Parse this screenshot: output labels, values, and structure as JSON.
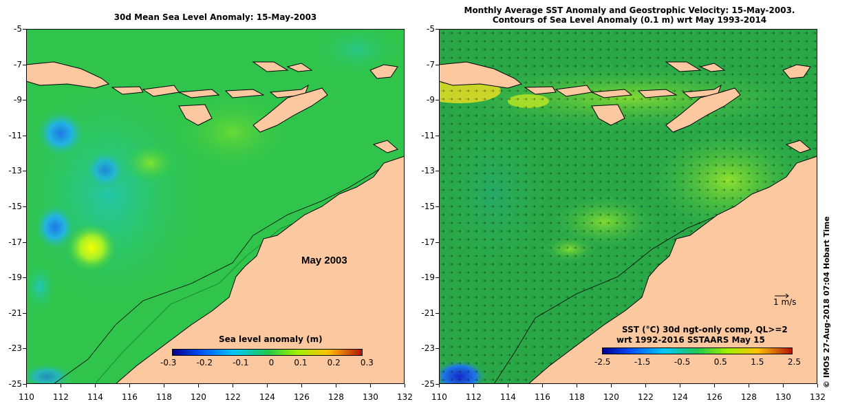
{
  "left_panel": {
    "title": "30d Mean Sea Level Anomaly: 15-May-2003",
    "month_label": "May 2003",
    "colorbar": {
      "title": "Sea level anomaly (m)",
      "ticks": [
        "-0.3",
        "-0.2",
        "-0.1",
        "0",
        "0.1",
        "0.2",
        "0.3"
      ],
      "range": [
        -0.3,
        0.3
      ]
    }
  },
  "right_panel": {
    "title_line1": "Monthly Average SST Anomaly  and Geostrophic Velocity: 15-May-2003.",
    "title_line2": "Contours of Sea Level Anomaly (0.1 m) wrt May 1993-2014",
    "velocity_scale": "1 m/s",
    "colorbar": {
      "title_line1": "SST (°C) 30d ngt-only comp, QL>=2",
      "title_line2": "wrt 1992-2016 SSTAARS May 15",
      "ticks": [
        "-2.5",
        "-1.5",
        "-0.5",
        "0.5",
        "1.5",
        "2.5"
      ],
      "range": [
        -2.5,
        2.5
      ]
    }
  },
  "axes": {
    "x_ticks": [
      "110",
      "112",
      "114",
      "116",
      "118",
      "120",
      "122",
      "124",
      "126",
      "128",
      "130",
      "132"
    ],
    "y_ticks": [
      "-5",
      "-7",
      "-9",
      "-11",
      "-13",
      "-15",
      "-17",
      "-19",
      "-21",
      "-23",
      "-25"
    ],
    "lon_range": [
      110,
      132
    ],
    "lat_range": [
      -25,
      -5
    ]
  },
  "credit": "©  IMOS 27-Aug-2018 07:04 Hobart Time",
  "colors": {
    "land": "#fcc8a0",
    "ocean_base": "#2ec84a",
    "shelf": "#3ebe5a",
    "low_anomaly": "#1e90ff",
    "high_anomaly": "#e8ff00"
  }
}
